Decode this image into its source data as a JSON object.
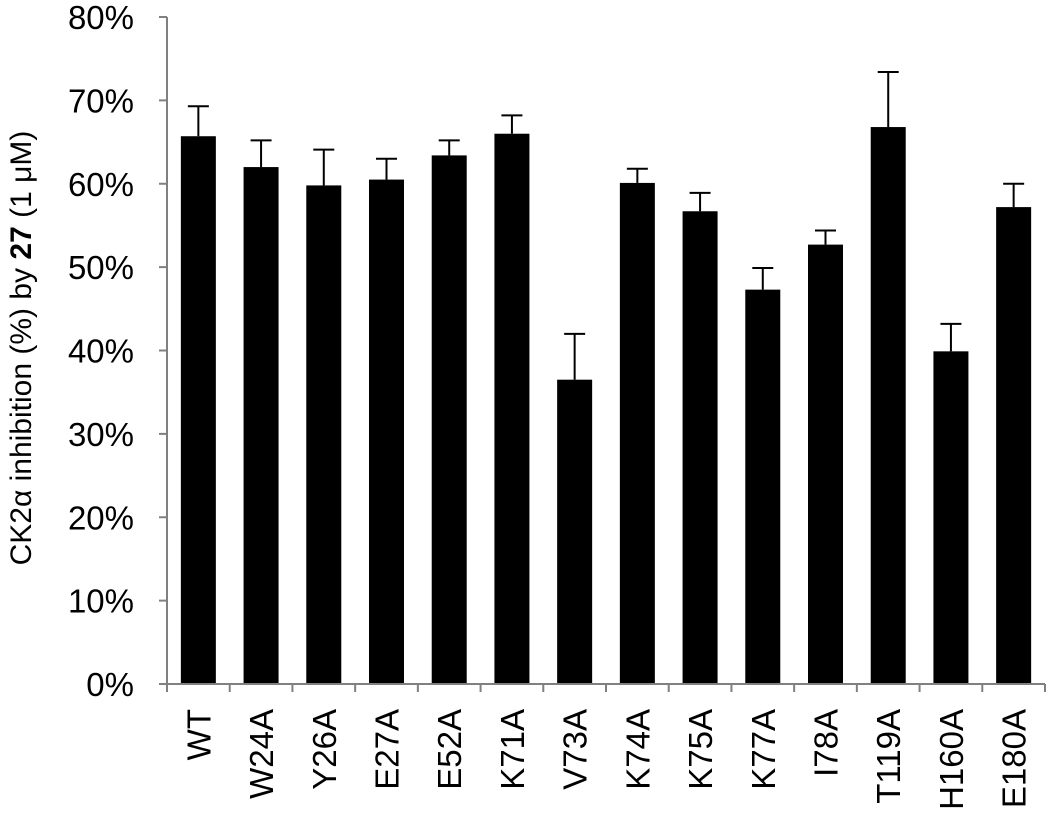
{
  "chart_data": {
    "type": "bar",
    "categories": [
      "WT",
      "W24A",
      "Y26A",
      "E27A",
      "E52A",
      "K71A",
      "V73A",
      "K74A",
      "K75A",
      "K77A",
      "I78A",
      "T119A",
      "H160A",
      "E180A"
    ],
    "values": [
      65.7,
      62.0,
      59.8,
      60.5,
      63.4,
      66.0,
      36.5,
      60.1,
      56.7,
      47.3,
      52.7,
      66.8,
      39.9,
      57.2
    ],
    "errors": [
      3.6,
      3.2,
      4.3,
      2.5,
      1.8,
      2.2,
      5.5,
      1.7,
      2.2,
      2.6,
      1.7,
      6.6,
      3.3,
      2.8
    ],
    "ylabel_parts": [
      "CK2α inhibition (%) by ",
      "27",
      " (1 μM)"
    ],
    "ylim": [
      0,
      80
    ],
    "yticks": [
      0,
      10,
      20,
      30,
      40,
      50,
      60,
      70,
      80
    ],
    "ytick_labels": [
      "0%",
      "10%",
      "20%",
      "30%",
      "40%",
      "50%",
      "60%",
      "70%",
      "80%"
    ],
    "grid": false,
    "bar_color": "#000000"
  }
}
